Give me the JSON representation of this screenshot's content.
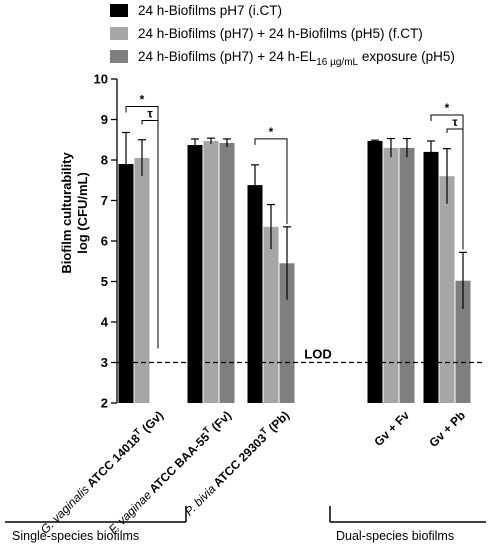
{
  "chart_data": {
    "type": "bar",
    "ylabel_line1": "Biofilm culturability",
    "ylabel_line2": "log (CFU/mL)",
    "ylim": [
      2,
      10
    ],
    "yticks": [
      2,
      3,
      4,
      5,
      6,
      7,
      8,
      9,
      10
    ],
    "lod": {
      "label": "LOD",
      "value": 3
    },
    "series": [
      {
        "name": "24 h-Biofilms pH7 (i.CT)",
        "color": "#000000"
      },
      {
        "name": "24 h-Biofilms (pH7) + 24 h-Biofilms (pH5) (f.CT)",
        "color": "#a6a6a6"
      },
      {
        "name_prefix": "24 h-Biofilms (pH7) + 24 h-EL",
        "name_sub": "16 µg/mL",
        "name_suffix": " exposure (pH5)",
        "color": "#7f7f7f"
      }
    ],
    "categories": [
      {
        "id": "gv",
        "species": "G. vaginalis",
        "strain": " ATCC 14018",
        "sup": "T",
        "abbr": " (Gv)",
        "values": [
          7.9,
          8.05,
          null
        ],
        "errors": [
          0.78,
          0.45,
          0
        ]
      },
      {
        "id": "fv",
        "species": "F. vaginae",
        "strain": " ATCC BAA-55",
        "sup": "T",
        "abbr": " (Fv)",
        "values": [
          8.37,
          8.47,
          8.42
        ],
        "errors": [
          0.15,
          0.07,
          0.1
        ]
      },
      {
        "id": "pb",
        "species": "P. bivia",
        "strain": " ATCC 29303",
        "sup": "T",
        "abbr": " (Pb)",
        "values": [
          7.38,
          6.35,
          5.45
        ],
        "errors": [
          0.5,
          0.55,
          0.9
        ]
      },
      {
        "id": "gvfv",
        "label": "Gv + Fv",
        "values": [
          8.47,
          8.3,
          8.3
        ],
        "errors": [
          0.02,
          0.23,
          0.23
        ]
      },
      {
        "id": "gvpb",
        "label": "Gv + Pb",
        "values": [
          8.2,
          7.6,
          5.02
        ],
        "errors": [
          0.27,
          0.68,
          0.7
        ]
      }
    ],
    "significance": [
      {
        "category": "gv",
        "from": 0,
        "to": 2,
        "label": "*"
      },
      {
        "category": "gv",
        "from": 1,
        "to": 2,
        "label": "τ"
      },
      {
        "category": "pb",
        "from": 0,
        "to": 2,
        "label": "*"
      },
      {
        "category": "gvpb",
        "from": 0,
        "to": 2,
        "label": "*"
      },
      {
        "category": "gvpb",
        "from": 1,
        "to": 2,
        "label": "τ"
      }
    ],
    "groups": [
      {
        "label": "Single-species biofilms"
      },
      {
        "label": "Dual-species biofilms"
      }
    ]
  }
}
